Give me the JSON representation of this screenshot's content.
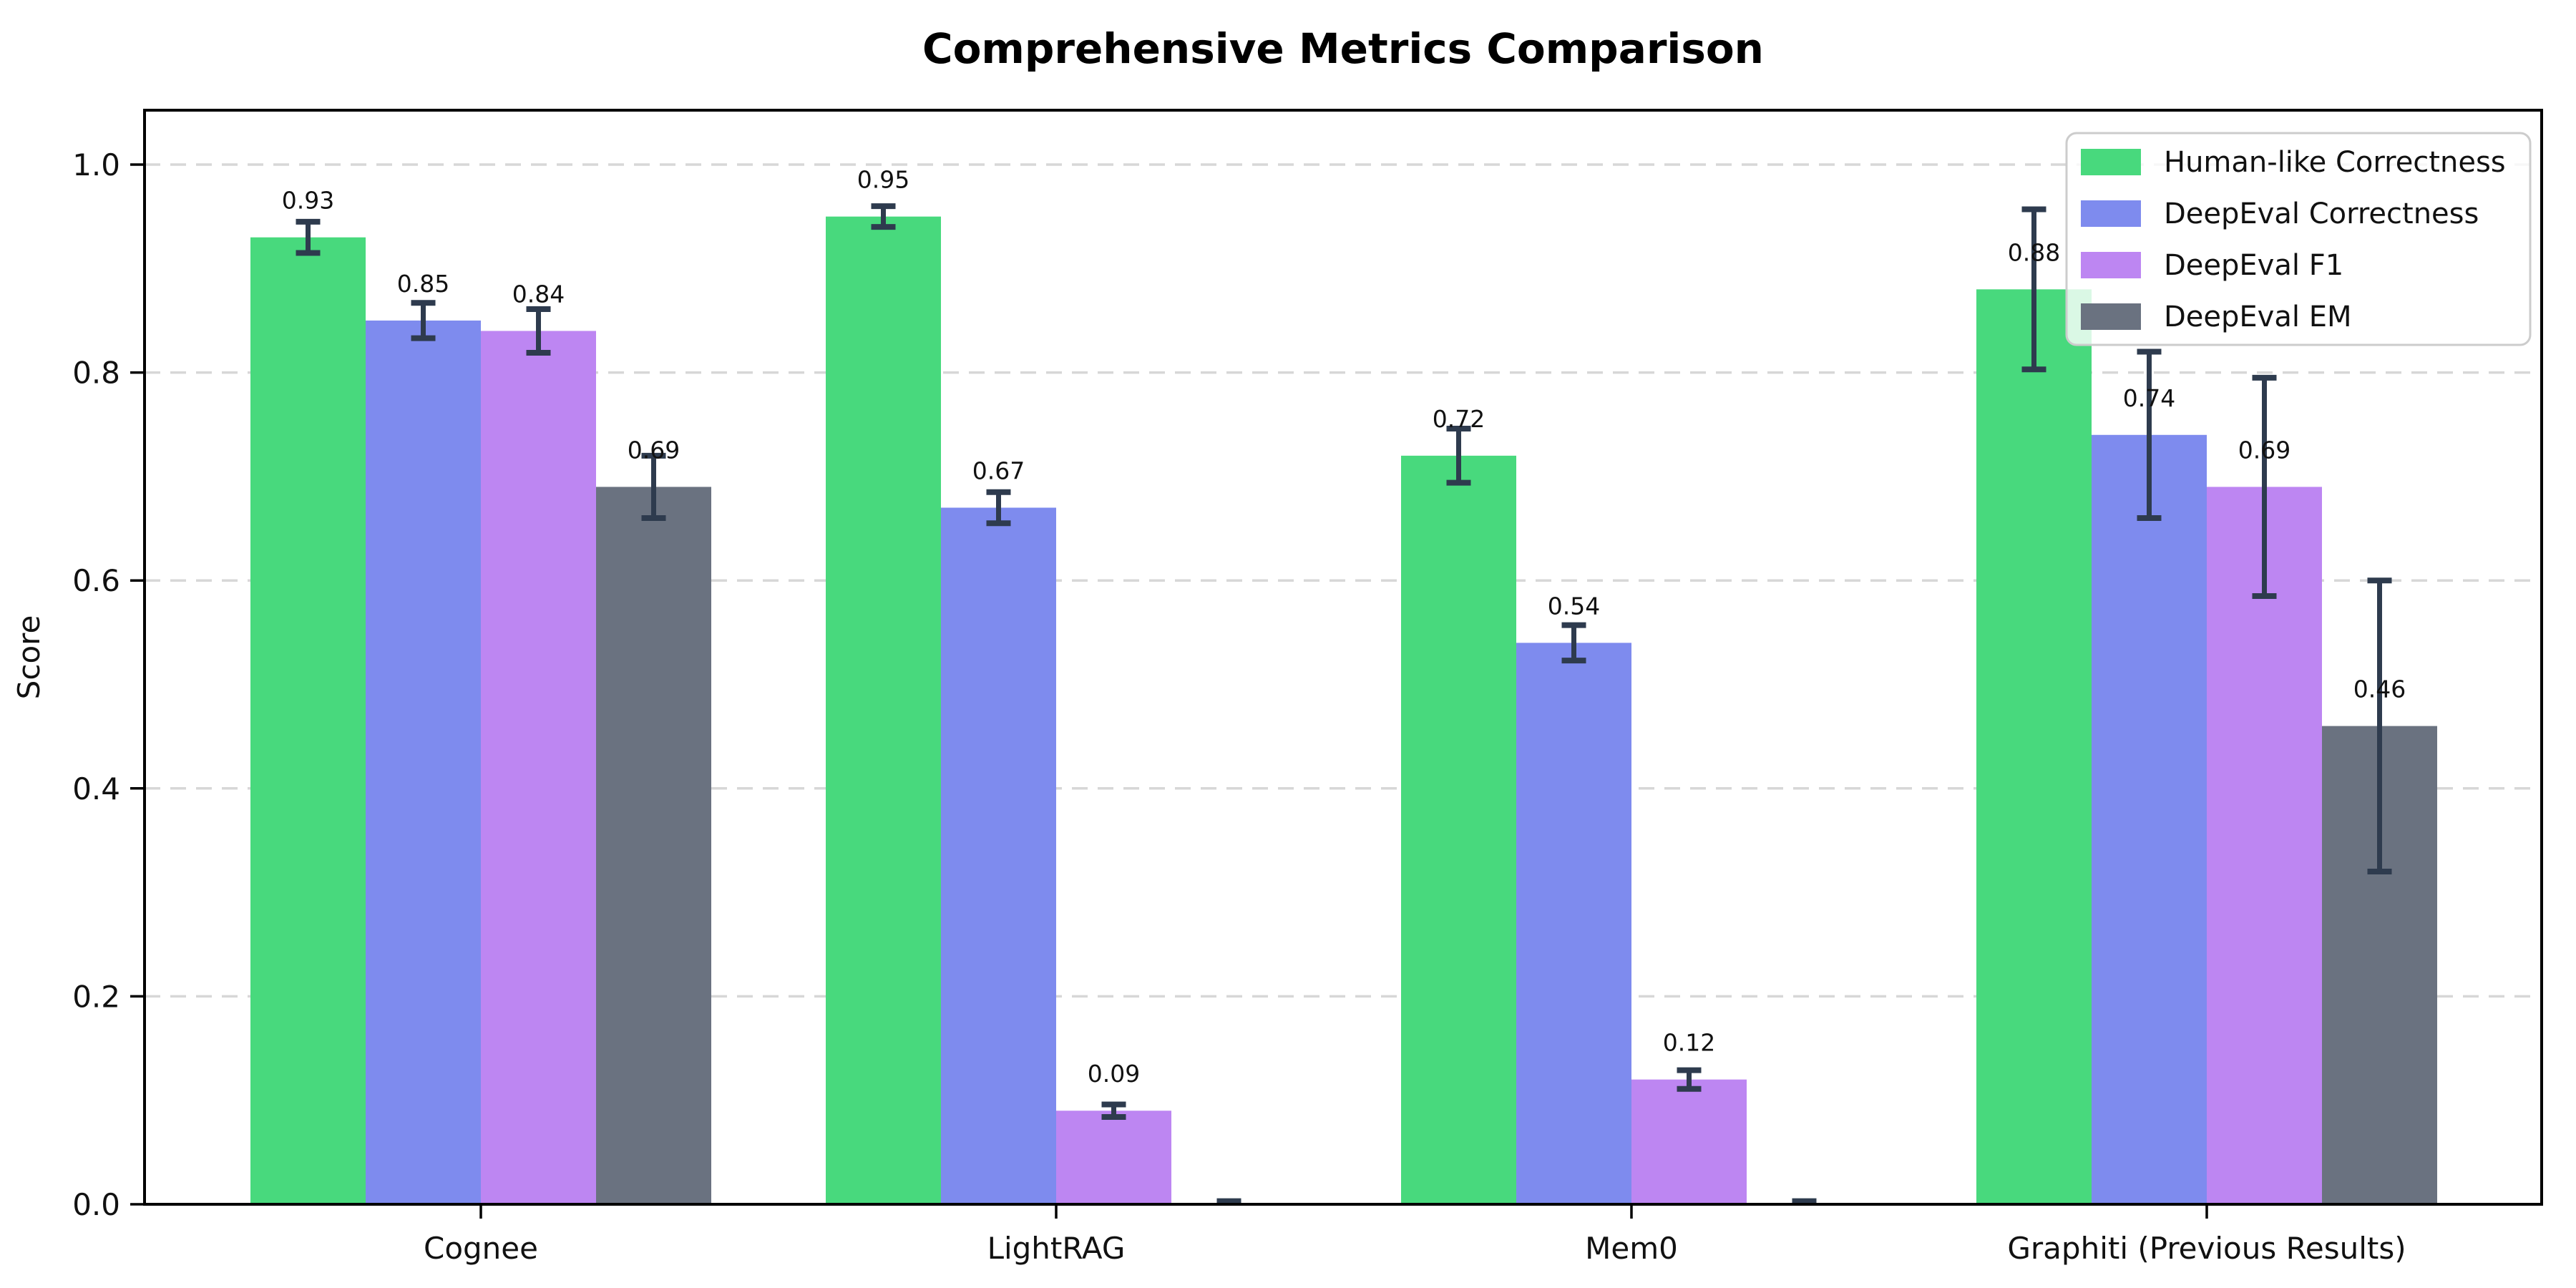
{
  "chart_data": {
    "type": "bar",
    "title": "Comprehensive Metrics Comparison",
    "xlabel": "",
    "ylabel": "Score",
    "categories": [
      "Cognee",
      "LightRAG",
      "Mem0",
      "Graphiti (Previous Results)"
    ],
    "series": [
      {
        "name": "Human-like Correctness",
        "color": "#48d97d",
        "values": [
          0.93,
          0.95,
          0.72,
          0.88
        ],
        "errors": [
          0.015,
          0.01,
          0.026,
          0.077
        ],
        "labels": [
          "0.93",
          "0.95",
          "0.72",
          "0.88"
        ]
      },
      {
        "name": "DeepEval Correctness",
        "color": "#7e8bee",
        "values": [
          0.85,
          0.67,
          0.54,
          0.74
        ],
        "errors": [
          0.017,
          0.015,
          0.017,
          0.08
        ],
        "labels": [
          "0.85",
          "0.67",
          "0.54",
          "0.74"
        ]
      },
      {
        "name": "DeepEval F1",
        "color": "#bd86f2",
        "values": [
          0.84,
          0.09,
          0.12,
          0.69
        ],
        "errors": [
          0.021,
          0.006,
          0.009,
          0.105
        ],
        "labels": [
          "0.84",
          "0.09",
          "0.12",
          "0.69"
        ]
      },
      {
        "name": "DeepEval EM",
        "color": "#6a7280",
        "values": [
          0.69,
          0.0,
          0.0,
          0.46
        ],
        "errors": [
          0.03,
          0.003,
          0.003,
          0.14
        ],
        "labels": [
          "0.69",
          "",
          "",
          "0.46"
        ]
      }
    ],
    "yticks": [
      "0.0",
      "0.2",
      "0.4",
      "0.6",
      "0.8",
      "1.0"
    ],
    "ylim": [
      0,
      1.052
    ],
    "grid": {
      "axis": "y",
      "style": "dashed",
      "color": "#d7d7d7"
    },
    "legend": {
      "position": "upper right"
    },
    "error_color": "#2e3b4e",
    "spine_color": "#000000",
    "text_color": "#111111",
    "background": "#ffffff"
  }
}
